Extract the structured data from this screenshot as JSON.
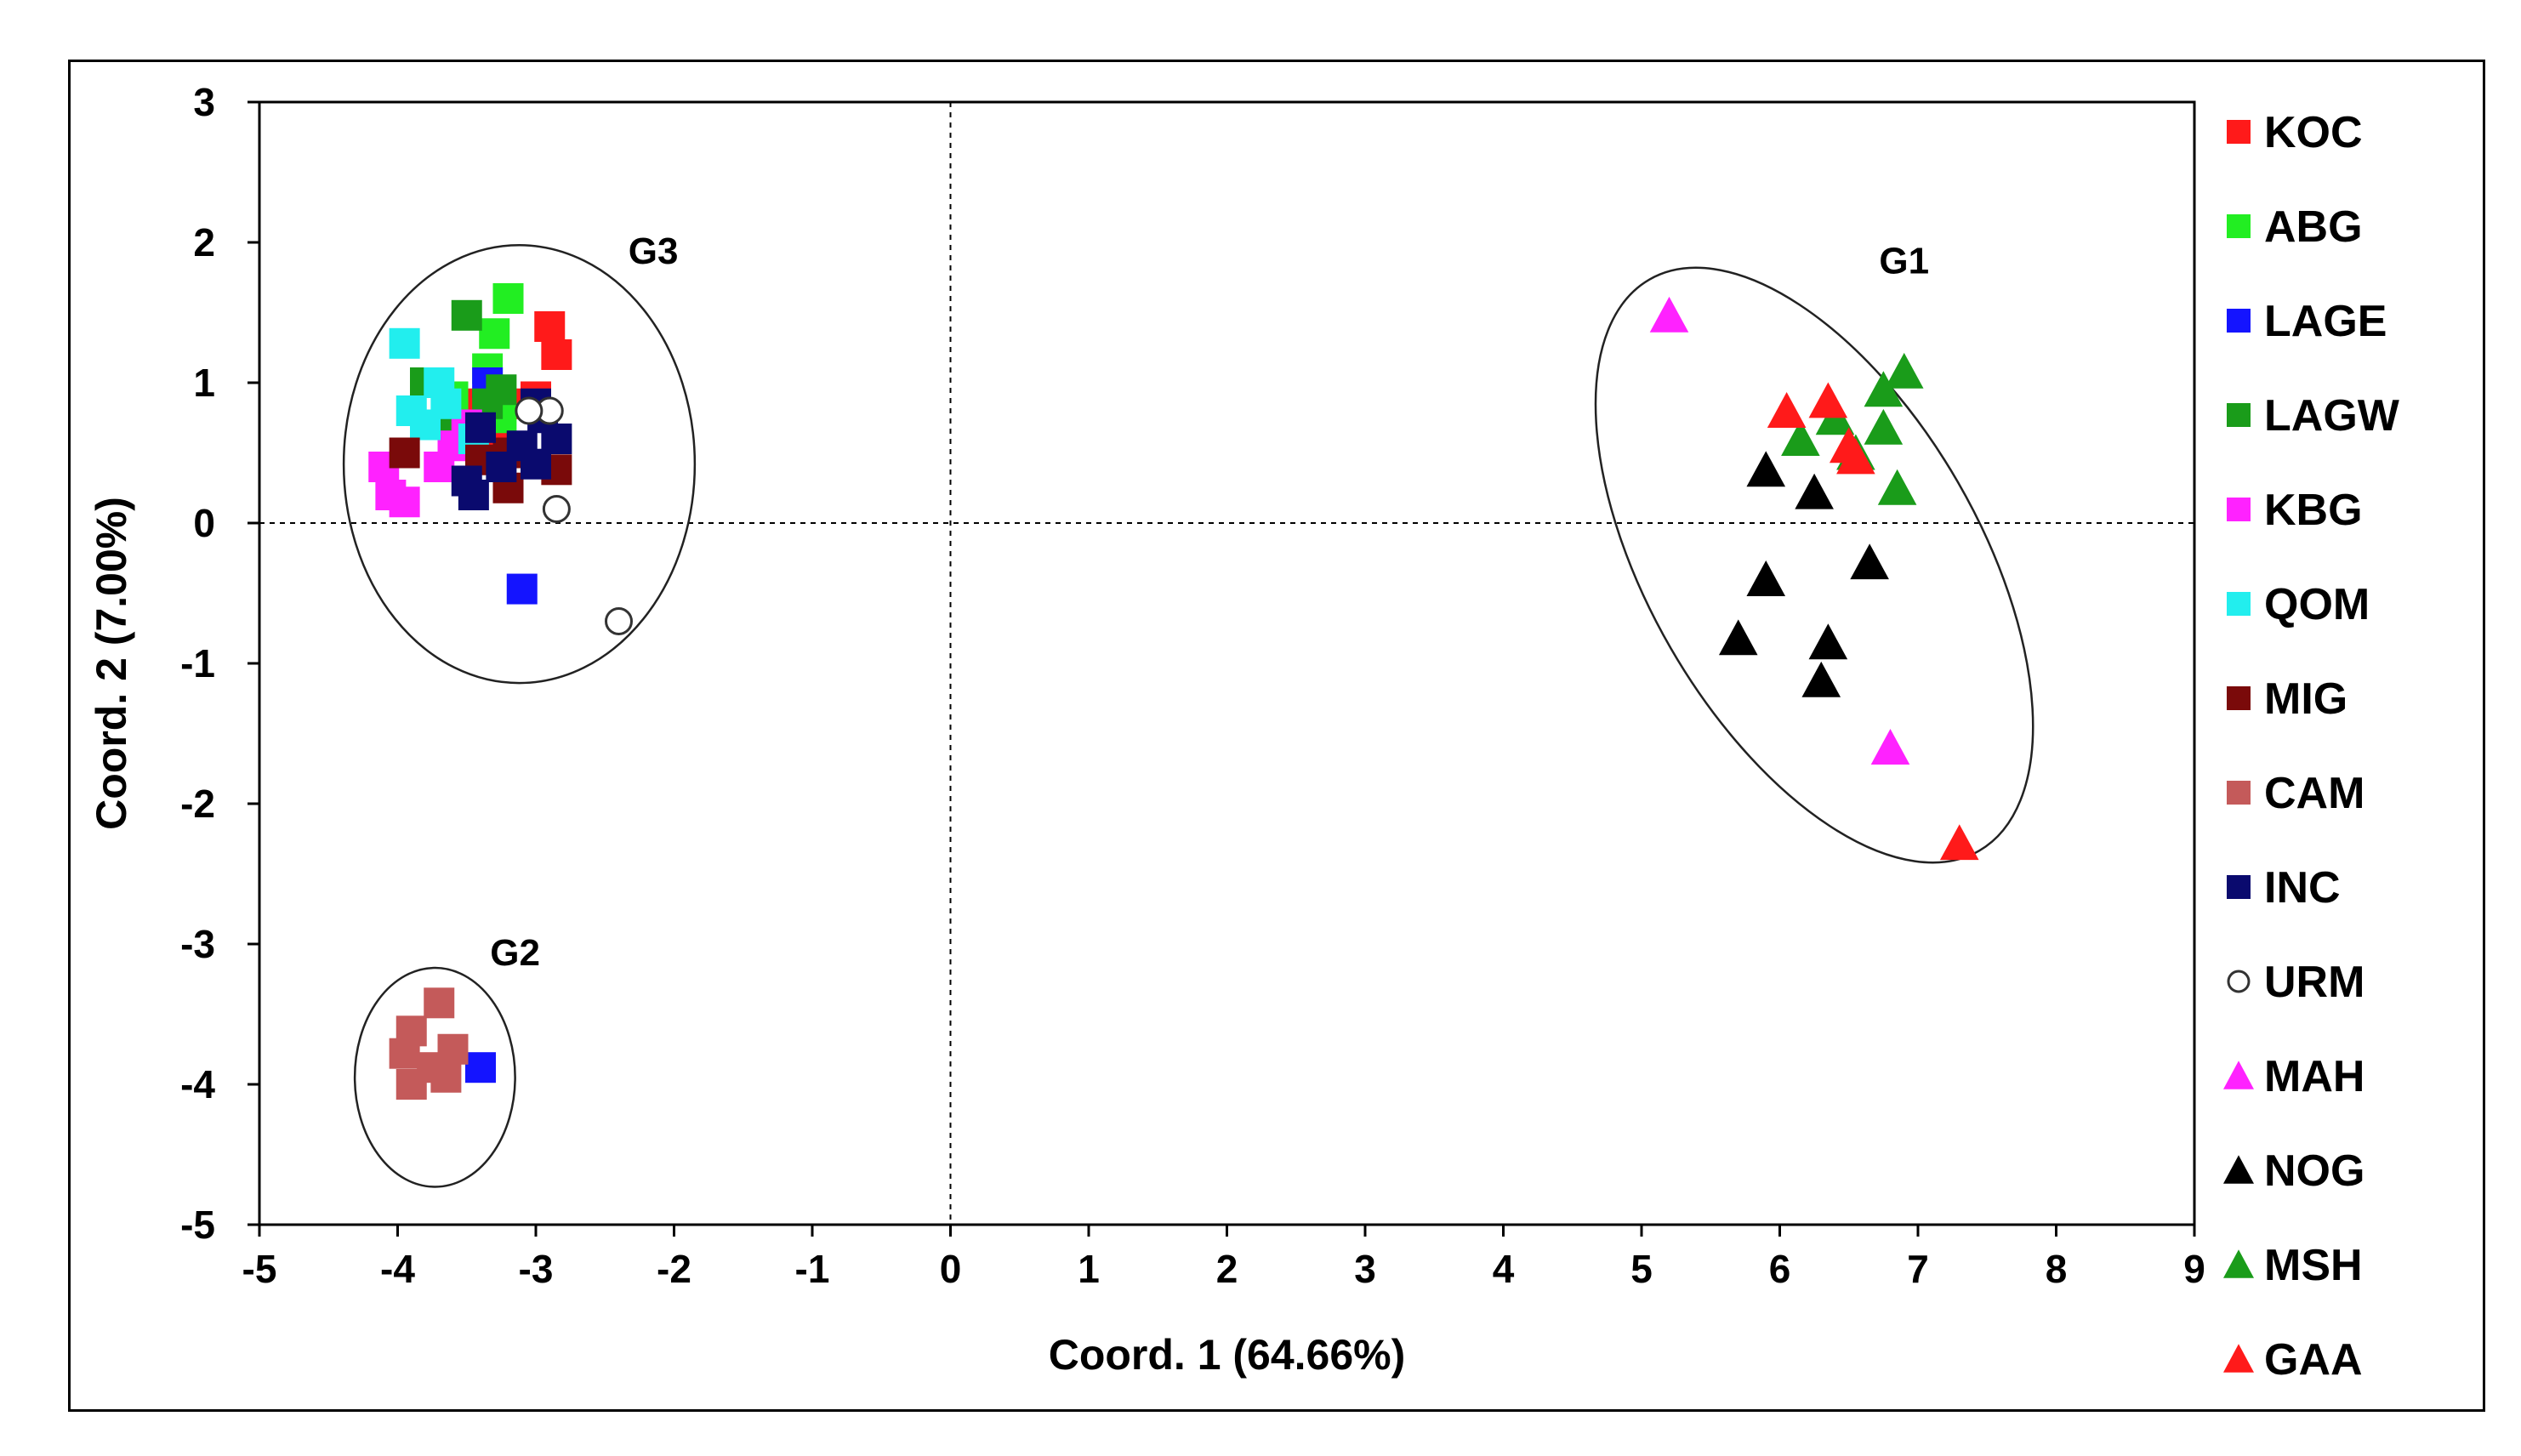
{
  "chart_data": {
    "type": "scatter",
    "title": "",
    "xlabel": "Coord. 1 (64.66%)",
    "ylabel": "Coord. 2 (7.00%)",
    "xlim": [
      -5,
      9
    ],
    "ylim": [
      -5,
      3
    ],
    "xticks": [
      "-5",
      "-4",
      "-3",
      "-2",
      "-1",
      "0",
      "1",
      "2",
      "3",
      "4",
      "5",
      "6",
      "7",
      "8",
      "9"
    ],
    "yticks": [
      "3",
      "2",
      "1",
      "0",
      "-1",
      "-2",
      "-3",
      "-4",
      "-5"
    ],
    "grid": false,
    "reference_lines": {
      "x": 0,
      "y": 0,
      "style": "dashed"
    },
    "legend_position": "right",
    "series": [
      {
        "name": "KOC",
        "marker": "square",
        "color": "#ff1a1a",
        "points": [
          [
            -2.9,
            1.4
          ],
          [
            -2.85,
            1.2
          ],
          [
            -3.15,
            0.85
          ],
          [
            -3.5,
            0.85
          ],
          [
            -3.3,
            0.55
          ],
          [
            -3.0,
            0.9
          ]
        ]
      },
      {
        "name": "ABG",
        "marker": "square",
        "color": "#22ee22",
        "points": [
          [
            -3.2,
            1.6
          ],
          [
            -3.3,
            1.35
          ],
          [
            -3.35,
            1.1
          ],
          [
            -3.6,
            0.9
          ],
          [
            -3.25,
            0.75
          ]
        ]
      },
      {
        "name": "LAGE",
        "marker": "square",
        "color": "#1414ff",
        "points": [
          [
            -3.1,
            -0.47
          ],
          [
            -3.4,
            -3.88
          ],
          [
            -3.35,
            1.0
          ]
        ]
      },
      {
        "name": "LAGW",
        "marker": "square",
        "color": "#1a9c1a",
        "points": [
          [
            -3.5,
            1.48
          ],
          [
            -3.8,
            1.0
          ],
          [
            -3.35,
            0.85
          ],
          [
            -3.6,
            0.65
          ],
          [
            -3.25,
            0.95
          ]
        ]
      },
      {
        "name": "KBG",
        "marker": "square",
        "color": "#ff22ff",
        "points": [
          [
            -4.1,
            0.4
          ],
          [
            -4.05,
            0.2
          ],
          [
            -3.95,
            0.15
          ],
          [
            -3.7,
            0.4
          ],
          [
            -3.6,
            0.55
          ],
          [
            -3.5,
            0.7
          ]
        ]
      },
      {
        "name": "QOM",
        "marker": "square",
        "color": "#22eeee",
        "points": [
          [
            -3.95,
            1.28
          ],
          [
            -3.7,
            1.0
          ],
          [
            -3.9,
            0.8
          ],
          [
            -3.8,
            0.7
          ],
          [
            -3.65,
            0.85
          ],
          [
            -3.45,
            0.6
          ]
        ]
      },
      {
        "name": "MIG",
        "marker": "square",
        "color": "#7a0a0a",
        "points": [
          [
            -3.95,
            0.5
          ],
          [
            -3.2,
            0.5
          ],
          [
            -3.2,
            0.25
          ],
          [
            -2.85,
            0.38
          ],
          [
            -3.4,
            0.45
          ]
        ]
      },
      {
        "name": "CAM",
        "marker": "square",
        "color": "#c45a5a",
        "points": [
          [
            -3.7,
            -3.42
          ],
          [
            -3.95,
            -3.78
          ],
          [
            -3.9,
            -3.62
          ],
          [
            -3.9,
            -4.0
          ],
          [
            -3.6,
            -3.75
          ],
          [
            -3.65,
            -3.95
          ],
          [
            -3.75,
            -3.88
          ]
        ]
      },
      {
        "name": "INC",
        "marker": "square",
        "color": "#0a0a6e",
        "points": [
          [
            -3.0,
            0.85
          ],
          [
            -2.85,
            0.6
          ],
          [
            -3.0,
            0.42
          ],
          [
            -3.4,
            0.68
          ],
          [
            -3.5,
            0.3
          ],
          [
            -3.45,
            0.2
          ],
          [
            -3.1,
            0.55
          ],
          [
            -3.25,
            0.4
          ],
          [
            -2.95,
            0.75
          ]
        ]
      },
      {
        "name": "URM",
        "marker": "circle-open",
        "color": "#333333",
        "points": [
          [
            -2.9,
            0.8
          ],
          [
            -3.05,
            0.8
          ],
          [
            -2.85,
            0.1
          ],
          [
            -2.4,
            -0.7
          ]
        ]
      },
      {
        "name": "MAH",
        "marker": "triangle",
        "color": "#ff22ff",
        "points": [
          [
            5.2,
            1.48
          ],
          [
            6.8,
            -1.6
          ]
        ]
      },
      {
        "name": "NOG",
        "marker": "triangle",
        "color": "#000000",
        "points": [
          [
            5.9,
            0.38
          ],
          [
            6.25,
            0.22
          ],
          [
            5.9,
            -0.4
          ],
          [
            6.65,
            -0.28
          ],
          [
            5.7,
            -0.82
          ],
          [
            6.35,
            -0.85
          ],
          [
            6.3,
            -1.12
          ]
        ]
      },
      {
        "name": "MSH",
        "marker": "triangle",
        "color": "#1a9c1a",
        "points": [
          [
            6.9,
            1.08
          ],
          [
            6.75,
            0.95
          ],
          [
            6.4,
            0.75
          ],
          [
            6.15,
            0.6
          ],
          [
            6.75,
            0.68
          ],
          [
            6.55,
            0.5
          ],
          [
            6.85,
            0.25
          ]
        ]
      },
      {
        "name": "GAA",
        "marker": "triangle",
        "color": "#ff1a1a",
        "points": [
          [
            6.05,
            0.8
          ],
          [
            6.35,
            0.87
          ],
          [
            6.5,
            0.55
          ],
          [
            6.55,
            0.47
          ],
          [
            7.3,
            -2.28
          ]
        ]
      }
    ],
    "annotations": [
      {
        "label": "G1",
        "x": 6.9,
        "y": 1.78
      },
      {
        "label": "G2",
        "x": -3.15,
        "y": -3.15
      },
      {
        "label": "G3",
        "x": -2.15,
        "y": 1.85
      }
    ],
    "group_ellipses": [
      {
        "group": "G1",
        "cx": 6.25,
        "cy": -0.3,
        "rx": 1.2,
        "ry": 2.35,
        "tilt_deg": -30
      },
      {
        "group": "G2",
        "cx": -3.73,
        "cy": -3.95,
        "rx": 0.58,
        "ry": 0.78,
        "tilt_deg": 0
      },
      {
        "group": "G3",
        "cx": -3.12,
        "cy": 0.42,
        "rx": 1.27,
        "ry": 1.56,
        "tilt_deg": 0
      }
    ]
  }
}
